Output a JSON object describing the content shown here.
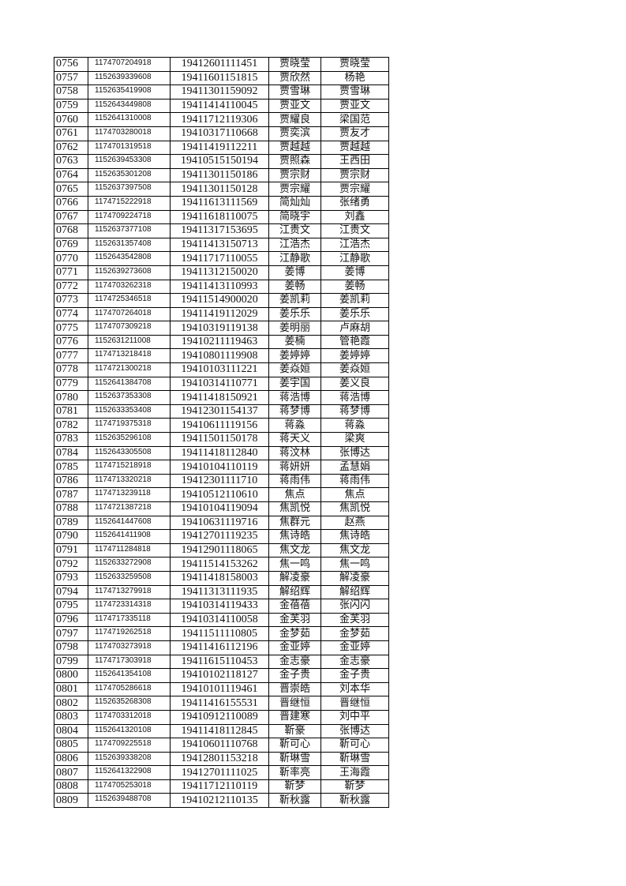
{
  "rows": [
    [
      "0756",
      "1174707204918",
      "19412601111451",
      "贾晓莹",
      "贾晓莹"
    ],
    [
      "0757",
      "1152639339608",
      "19411601151815",
      "贾欣然",
      "杨艳"
    ],
    [
      "0758",
      "1152635419908",
      "19411301159092",
      "贾雪琳",
      "贾雪琳"
    ],
    [
      "0759",
      "1152643449808",
      "19411414110045",
      "贾亚文",
      "贾亚文"
    ],
    [
      "0760",
      "1152641310008",
      "19411712119306",
      "贾耀良",
      "梁国范"
    ],
    [
      "0761",
      "1174703280018",
      "19410317110668",
      "贾奕滨",
      "贾友才"
    ],
    [
      "0762",
      "1174701319518",
      "19411419112211",
      "贾越越",
      "贾越越"
    ],
    [
      "0763",
      "1152639453308",
      "19410515150194",
      "贾照森",
      "王西田"
    ],
    [
      "0764",
      "1152635301208",
      "19411301150186",
      "贾宗财",
      "贾宗财"
    ],
    [
      "0765",
      "1152637397508",
      "19411301150128",
      "贾宗耀",
      "贾宗耀"
    ],
    [
      "0766",
      "1174715222918",
      "19411613111569",
      "简灿灿",
      "张绪勇"
    ],
    [
      "0767",
      "1174709224718",
      "19411618110075",
      "简晓宇",
      "刘鑫"
    ],
    [
      "0768",
      "1152637377108",
      "19411317153695",
      "江贵文",
      "江贵文"
    ],
    [
      "0769",
      "1152631357408",
      "19411413150713",
      "江浩杰",
      "江浩杰"
    ],
    [
      "0770",
      "1152643542808",
      "19411717110055",
      "江静歌",
      "江静歌"
    ],
    [
      "0771",
      "1152639273608",
      "19411312150020",
      "姜博",
      "姜博"
    ],
    [
      "0772",
      "1174703262318",
      "19411413110993",
      "姜畅",
      "姜畅"
    ],
    [
      "0773",
      "1174725346518",
      "19411514900020",
      "姜凯莉",
      "姜凯莉"
    ],
    [
      "0774",
      "1174707264018",
      "19411419112029",
      "姜乐乐",
      "姜乐乐"
    ],
    [
      "0775",
      "1174707309218",
      "19410319119138",
      "姜明丽",
      "卢麻胡"
    ],
    [
      "0776",
      "1152631211008",
      "19410211119463",
      "姜楠",
      "管艳霞"
    ],
    [
      "0777",
      "1174713218418",
      "19410801119908",
      "姜婷婷",
      "姜婷婷"
    ],
    [
      "0778",
      "1174721300218",
      "19410103111221",
      "姜焱姮",
      "姜焱姮"
    ],
    [
      "0779",
      "1152641384708",
      "19410314110771",
      "姜宇国",
      "姜义良"
    ],
    [
      "0780",
      "1152637353308",
      "19411418150921",
      "蒋浩博",
      "蒋浩博"
    ],
    [
      "0781",
      "1152633353408",
      "19412301154137",
      "蒋梦博",
      "蒋梦博"
    ],
    [
      "0782",
      "1174719375318",
      "19410611119156",
      "蒋淼",
      "蒋淼"
    ],
    [
      "0783",
      "1152635296108",
      "19411501150178",
      "蒋天义",
      "梁爽"
    ],
    [
      "0784",
      "1152643305508",
      "19411418112840",
      "蒋汶林",
      "张博达"
    ],
    [
      "0785",
      "1174715218918",
      "19410104110119",
      "蒋妍妍",
      "孟慧娟"
    ],
    [
      "0786",
      "1174713320218",
      "19412301111710",
      "蒋雨伟",
      "蒋雨伟"
    ],
    [
      "0787",
      "1174713239118",
      "19410512110610",
      "焦点",
      "焦点"
    ],
    [
      "0788",
      "1174721387218",
      "19410104119094",
      "焦凯悦",
      "焦凯悦"
    ],
    [
      "0789",
      "1152641447608",
      "19410631119716",
      "焦群元",
      "赵燕"
    ],
    [
      "0790",
      "1152641411908",
      "19412701119235",
      "焦诗皓",
      "焦诗皓"
    ],
    [
      "0791",
      "1174711284818",
      "19412901118065",
      "焦文龙",
      "焦文龙"
    ],
    [
      "0792",
      "1152633272908",
      "19411514153262",
      "焦一鸣",
      "焦一鸣"
    ],
    [
      "0793",
      "1152633259508",
      "19411418158003",
      "解凌豪",
      "解凌豪"
    ],
    [
      "0794",
      "1174713279918",
      "19411313111935",
      "解绍辉",
      "解绍辉"
    ],
    [
      "0795",
      "1174723314318",
      "19410314119433",
      "金蓓蓓",
      "张闪闪"
    ],
    [
      "0796",
      "1174717335118",
      "19410314110058",
      "金芙羽",
      "金芙羽"
    ],
    [
      "0797",
      "1174719262518",
      "19411511110805",
      "金梦茹",
      "金梦茹"
    ],
    [
      "0798",
      "1174703273918",
      "19411416112196",
      "金亚婷",
      "金亚婷"
    ],
    [
      "0799",
      "1174717303918",
      "19411615110453",
      "金志豪",
      "金志豪"
    ],
    [
      "0800",
      "1152641354108",
      "19410102118127",
      "金子贵",
      "金子贵"
    ],
    [
      "0801",
      "1174705286618",
      "19410101119461",
      "晋崇皓",
      "刘本华"
    ],
    [
      "0802",
      "1152635268308",
      "19411416155531",
      "晋继恒",
      "晋继恒"
    ],
    [
      "0803",
      "1174703312018",
      "19410912110089",
      "晋建寒",
      "刘中平"
    ],
    [
      "0804",
      "1152641320108",
      "19411418112845",
      "靳豪",
      "张博达"
    ],
    [
      "0805",
      "1174709225518",
      "19410601110768",
      "靳可心",
      "靳可心"
    ],
    [
      "0806",
      "1152639338208",
      "19412801153218",
      "靳琳雪",
      "靳琳雪"
    ],
    [
      "0807",
      "1152641322908",
      "19412701111025",
      "靳率亮",
      "王海霞"
    ],
    [
      "0808",
      "1174705253018",
      "19411712110119",
      "靳梦",
      "靳梦"
    ],
    [
      "0809",
      "1152639488708",
      "19410212110135",
      "靳秋露",
      "靳秋露"
    ]
  ]
}
